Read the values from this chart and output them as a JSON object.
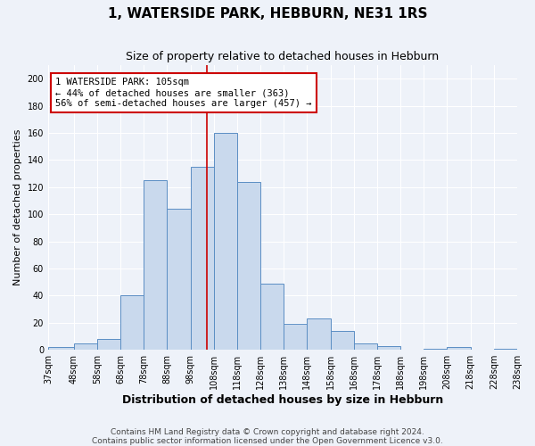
{
  "title": "1, WATERSIDE PARK, HEBBURN, NE31 1RS",
  "subtitle": "Size of property relative to detached houses in Hebburn",
  "xlabel": "Distribution of detached houses by size in Hebburn",
  "ylabel": "Number of detached properties",
  "bins": [
    37,
    48,
    58,
    68,
    78,
    88,
    98,
    108,
    118,
    128,
    138,
    148,
    158,
    168,
    178,
    188,
    198,
    208,
    218,
    228,
    238
  ],
  "bar_heights": [
    2,
    5,
    8,
    40,
    125,
    104,
    135,
    160,
    124,
    49,
    19,
    23,
    14,
    5,
    3,
    0,
    1,
    2,
    0,
    1
  ],
  "bar_color": "#c9d9ed",
  "bar_edge_color": "#5b8ec4",
  "property_value": 105,
  "vline_color": "#cc0000",
  "annotation_text": "1 WATERSIDE PARK: 105sqm\n← 44% of detached houses are smaller (363)\n56% of semi-detached houses are larger (457) →",
  "annotation_box_color": "#ffffff",
  "annotation_box_edge_color": "#cc0000",
  "ylim": [
    0,
    210
  ],
  "yticks": [
    0,
    20,
    40,
    60,
    80,
    100,
    120,
    140,
    160,
    180,
    200
  ],
  "tick_labels": [
    "37sqm",
    "48sqm",
    "58sqm",
    "68sqm",
    "78sqm",
    "88sqm",
    "98sqm",
    "108sqm",
    "118sqm",
    "128sqm",
    "138sqm",
    "148sqm",
    "158sqm",
    "168sqm",
    "178sqm",
    "188sqm",
    "198sqm",
    "208sqm",
    "218sqm",
    "228sqm",
    "238sqm"
  ],
  "footer_line1": "Contains HM Land Registry data © Crown copyright and database right 2024.",
  "footer_line2": "Contains public sector information licensed under the Open Government Licence v3.0.",
  "background_color": "#eef2f9",
  "grid_color": "#ffffff",
  "title_fontsize": 11,
  "subtitle_fontsize": 9,
  "xlabel_fontsize": 9,
  "ylabel_fontsize": 8,
  "tick_fontsize": 7,
  "annotation_fontsize": 7.5,
  "footer_fontsize": 6.5
}
